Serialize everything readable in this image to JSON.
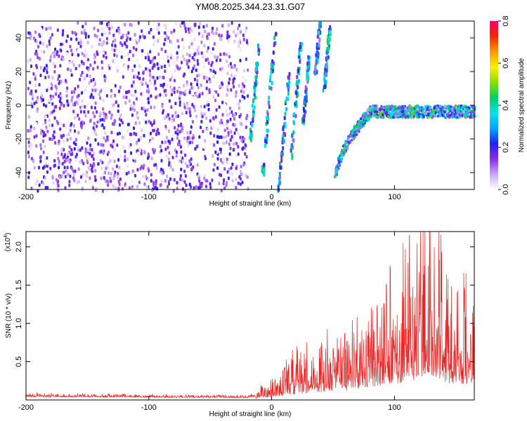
{
  "chart_data": [
    {
      "type": "heatmap",
      "title": "YM08.2025.344.23.31.G07",
      "xlabel": "Height of straight line (km)",
      "ylabel": "Frequency (Hz)",
      "xlim": [
        -200,
        165
      ],
      "ylim": [
        -50,
        50
      ],
      "xticks": [
        -200,
        -100,
        0,
        100
      ],
      "xtick_labels": [
        "-200",
        "-100",
        "0",
        "100"
      ],
      "yticks": [
        -40,
        -20,
        0,
        20,
        40
      ],
      "ytick_labels": [
        "-40",
        "-20",
        "0",
        "20",
        "40"
      ],
      "colorbar": {
        "label": "Normalized spectral amplitude",
        "range": [
          0,
          0.8
        ],
        "ticks": [
          0,
          0.2,
          0.4,
          0.6,
          0.8
        ],
        "tick_labels": [
          "0.0",
          "0.2",
          "0.4",
          "0.6",
          "0.8"
        ],
        "colors": [
          "#ffffff",
          "#c9a6ff",
          "#8a2be2",
          "#1f1fff",
          "#00a6ff",
          "#00e5e5",
          "#00d060",
          "#8be000",
          "#ffee00",
          "#ff9900",
          "#ff2200",
          "#ff0066"
        ]
      },
      "features": [
        {
          "description_x": "noise region",
          "x_range": [
            -200,
            -20
          ],
          "level": 0.12
        },
        {
          "description_x": "steep traces",
          "x_range": [
            -20,
            50
          ],
          "level": 0.35
        },
        {
          "description_x": "curved trace",
          "x_start": 50,
          "y_start": -50,
          "x_turn": 80,
          "y_plateau": -3,
          "x_end": 165,
          "level": 0.45
        }
      ]
    },
    {
      "type": "line",
      "xlabel": "Height of straight line (km)",
      "ylabel": "SNR (10 * v/v)",
      "y_multiplier": "(x10",
      "y_multiplier_exp": "4",
      "y_multiplier_close": ")",
      "xlim": [
        -200,
        165
      ],
      "ylim": [
        0,
        2.2
      ],
      "xticks": [
        -200,
        -100,
        0,
        100
      ],
      "xtick_labels": [
        "-200",
        "-100",
        "0",
        "100"
      ],
      "yticks": [
        0.5,
        1.0,
        1.5,
        2.0
      ],
      "ytick_labels": [
        "0.5",
        "1.0",
        "1.5",
        "2.0"
      ],
      "color": "#ee2222",
      "envelope": [
        {
          "x": -200,
          "y": 0.1
        },
        {
          "x": -20,
          "y": 0.07
        },
        {
          "x": -15,
          "y": 0.1
        },
        {
          "x": 0,
          "y": 0.25
        },
        {
          "x": 30,
          "y": 0.6
        },
        {
          "x": 60,
          "y": 0.8
        },
        {
          "x": 90,
          "y": 1.2
        },
        {
          "x": 110,
          "y": 1.5
        },
        {
          "x": 128,
          "y": 2.2
        },
        {
          "x": 145,
          "y": 1.4
        },
        {
          "x": 165,
          "y": 1.3
        }
      ]
    }
  ]
}
